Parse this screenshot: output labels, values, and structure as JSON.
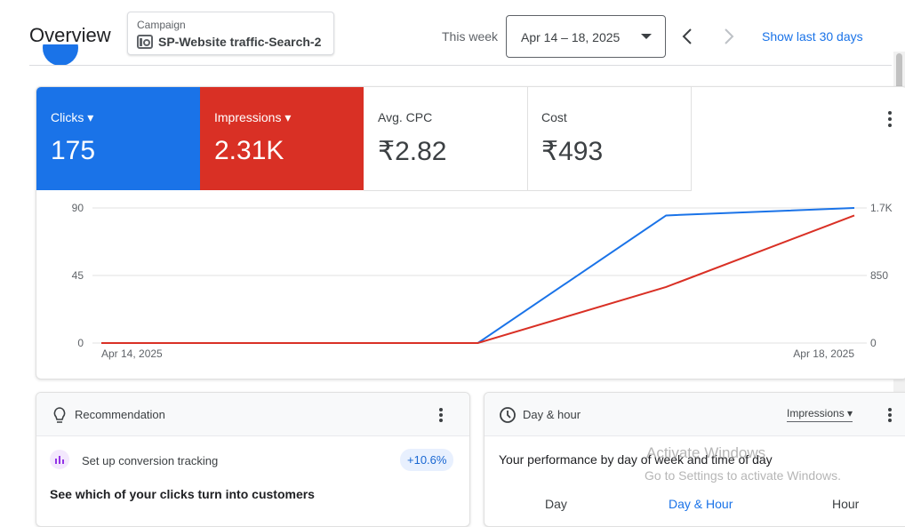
{
  "header": {
    "title": "Overview",
    "campaign_label": "Campaign",
    "campaign_name": "SP-Website traffic-Search-2",
    "period_label": "This week",
    "date_range": "Apr 14 – 18, 2025",
    "show_more": "Show last 30 days"
  },
  "metrics": [
    {
      "label": "Clicks",
      "value": "175"
    },
    {
      "label": "Impressions",
      "value": "2.31K"
    },
    {
      "label": "Avg. CPC",
      "value": "₹2.82"
    },
    {
      "label": "Cost",
      "value": "₹493"
    }
  ],
  "chart_data": {
    "type": "line",
    "categories": [
      "Apr 14, 2025",
      null,
      null,
      null,
      "Apr 18, 2025"
    ],
    "series": [
      {
        "name": "Clicks",
        "color": "#1a73e8",
        "values": [
          0,
          0,
          0,
          85,
          90
        ]
      },
      {
        "name": "Impressions",
        "color": "#d93025",
        "values": [
          0,
          0,
          0,
          705,
          1605
        ],
        "axis": "y2"
      }
    ],
    "ylim": [
      0,
      90
    ],
    "yticks": [
      0,
      45,
      90
    ],
    "y2lim": [
      0,
      1700
    ],
    "y2ticks": [
      0,
      850,
      {
        "value": 1700,
        "label": "1.7K"
      }
    ],
    "grid": true
  },
  "recommendation": {
    "title": "Recommendation",
    "item": "Set up conversion tracking",
    "uplift": "+10.6%",
    "headline": "See which of your clicks turn into customers"
  },
  "day_hour": {
    "title": "Day & hour",
    "metric": "Impressions",
    "headline": "Your performance by day of week and time of day",
    "tabs": [
      "Day",
      "Day & Hour",
      "Hour"
    ]
  },
  "watermark": {
    "title": "Activate Windows",
    "text": "Go to Settings to activate Windows."
  }
}
